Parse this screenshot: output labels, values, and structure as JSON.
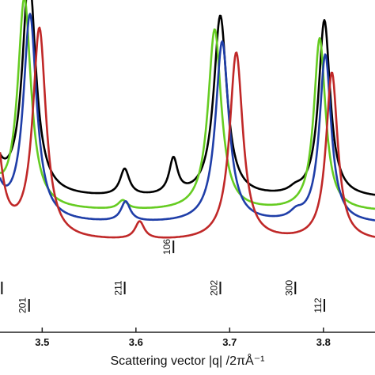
{
  "chart_data": {
    "type": "line",
    "xlabel": "Scattering vector |q| /2πÅ⁻¹",
    "ylabel": "",
    "xlim": [
      3.455,
      3.855
    ],
    "x_ticks": [
      "3.5",
      "3.6",
      "3.7",
      "3.8"
    ],
    "grid": false,
    "series": [
      {
        "color": "#000000",
        "baseline": 0.145,
        "peaks": [
          {
            "x": 3.486,
            "height": 1.0,
            "width": 0.0085
          },
          {
            "x": 3.588,
            "height": 0.12,
            "width": 0.006
          },
          {
            "x": 3.64,
            "height": 0.16,
            "width": 0.0055
          },
          {
            "x": 3.69,
            "height": 0.82,
            "width": 0.0085
          },
          {
            "x": 3.77,
            "height": 0.02,
            "width": 0.008
          },
          {
            "x": 3.801,
            "height": 0.8,
            "width": 0.0075
          },
          {
            "x": 3.44,
            "height": 0.55,
            "width": 0.0085
          }
        ]
      },
      {
        "color": "#66cc22",
        "baseline": 0.085,
        "peaks": [
          {
            "x": 3.481,
            "height": 0.95,
            "width": 0.0085
          },
          {
            "x": 3.586,
            "height": 0.04,
            "width": 0.006
          },
          {
            "x": 3.684,
            "height": 0.82,
            "width": 0.0085
          },
          {
            "x": 3.796,
            "height": 0.78,
            "width": 0.0075
          },
          {
            "x": 3.435,
            "height": 0.55,
            "width": 0.0085
          }
        ]
      },
      {
        "color": "#1f3ea8",
        "baseline": 0.03,
        "peaks": [
          {
            "x": 3.487,
            "height": 0.93,
            "width": 0.0085
          },
          {
            "x": 3.589,
            "height": 0.09,
            "width": 0.006
          },
          {
            "x": 3.692,
            "height": 0.82,
            "width": 0.0085
          },
          {
            "x": 3.771,
            "height": 0.03,
            "width": 0.008
          },
          {
            "x": 3.802,
            "height": 0.76,
            "width": 0.0075
          },
          {
            "x": 3.441,
            "height": 0.55,
            "width": 0.0085
          }
        ]
      },
      {
        "color": "#c02828",
        "baseline": -0.05,
        "peaks": [
          {
            "x": 3.497,
            "height": 0.95,
            "width": 0.0085
          },
          {
            "x": 3.604,
            "height": 0.08,
            "width": 0.006
          },
          {
            "x": 3.707,
            "height": 0.85,
            "width": 0.0085
          },
          {
            "x": 3.809,
            "height": 0.76,
            "width": 0.0075
          },
          {
            "x": 3.449,
            "height": 0.55,
            "width": 0.0085
          }
        ]
      }
    ],
    "reflections": [
      {
        "label": "201",
        "x": 3.486,
        "row": "lower"
      },
      {
        "label": "211",
        "x": 3.588,
        "row": "upper"
      },
      {
        "label": "106",
        "x": 3.64,
        "row": "top"
      },
      {
        "label": "202",
        "x": 3.69,
        "row": "upper"
      },
      {
        "label": "300",
        "x": 3.77,
        "row": "upper"
      },
      {
        "label": "112",
        "x": 3.801,
        "row": "lower"
      },
      {
        "label": "",
        "x": 3.457,
        "row": "upper"
      }
    ]
  }
}
